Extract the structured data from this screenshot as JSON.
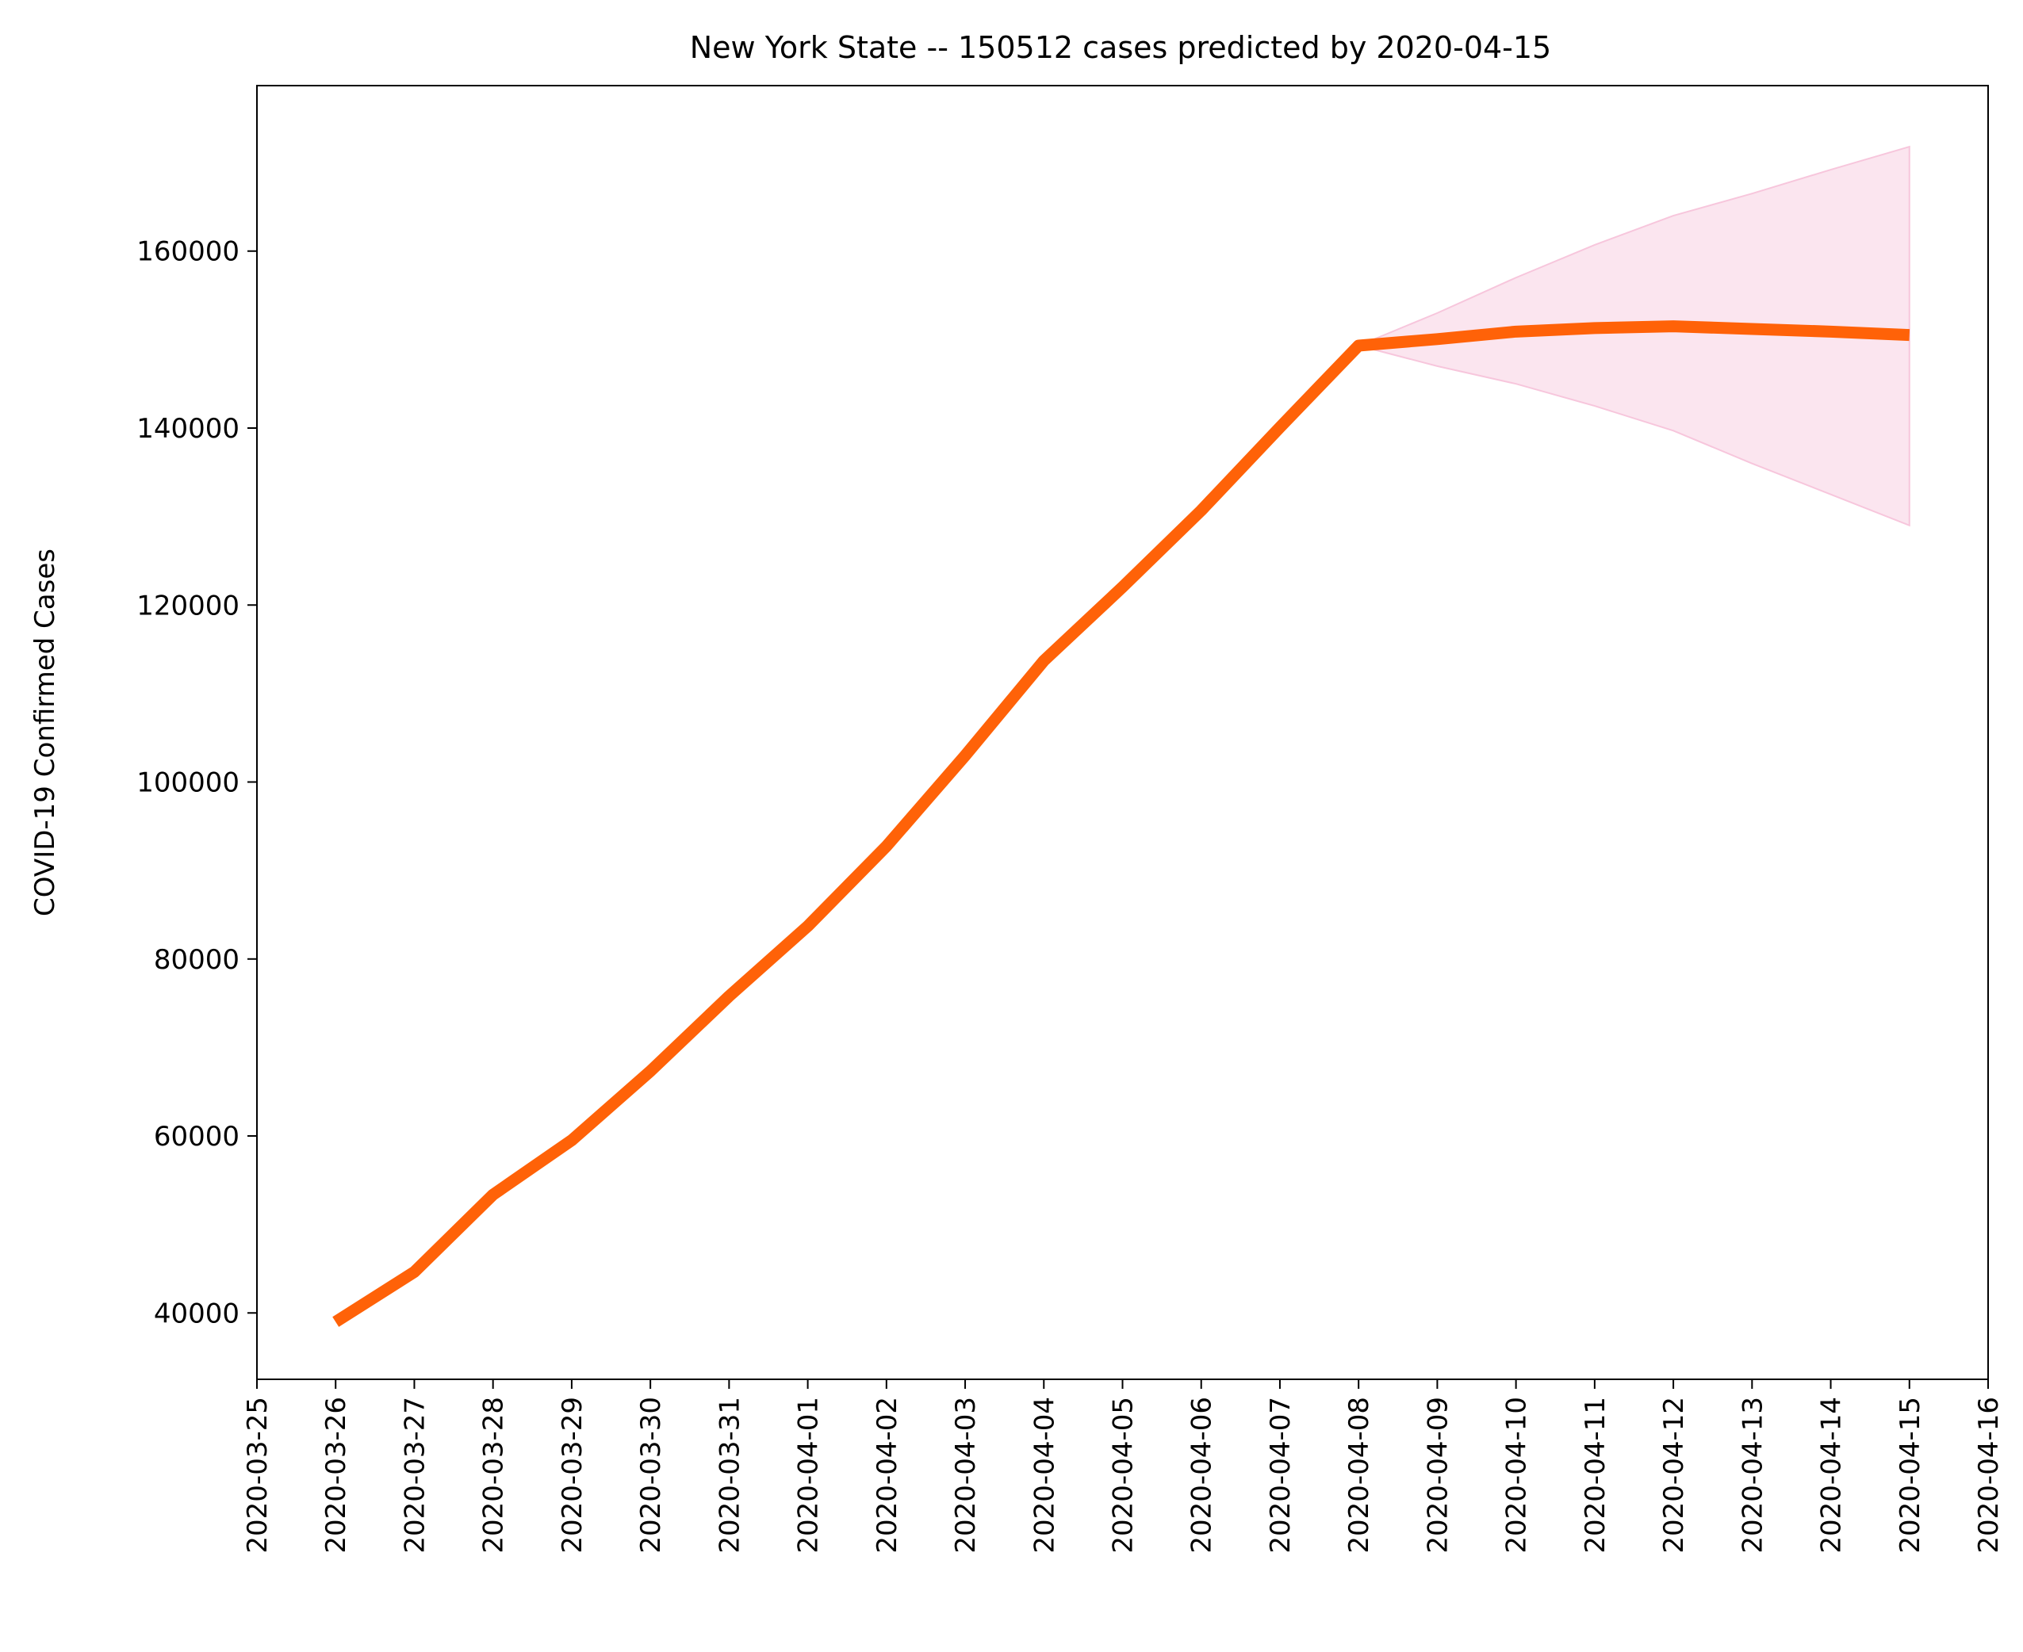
{
  "chart_data": {
    "type": "line",
    "title": "New York State  --  150512 cases predicted by 2020-04-15",
    "xlabel": "",
    "ylabel": "COVID-19 Confirmed Cases",
    "xlim": [
      "2020-03-25",
      "2020-04-16"
    ],
    "ylim": [
      32500,
      178700
    ],
    "grid": false,
    "legend": "none",
    "x_ticks": [
      "2020-03-25",
      "2020-03-26",
      "2020-03-27",
      "2020-03-28",
      "2020-03-29",
      "2020-03-30",
      "2020-03-31",
      "2020-04-01",
      "2020-04-02",
      "2020-04-03",
      "2020-04-04",
      "2020-04-05",
      "2020-04-06",
      "2020-04-07",
      "2020-04-08",
      "2020-04-09",
      "2020-04-10",
      "2020-04-11",
      "2020-04-12",
      "2020-04-13",
      "2020-04-14",
      "2020-04-15",
      "2020-04-16"
    ],
    "y_ticks": [
      40000,
      60000,
      80000,
      100000,
      120000,
      140000,
      160000
    ],
    "series": [
      {
        "color": "#ff6208",
        "x": [
          "2020-03-26",
          "2020-03-27",
          "2020-03-28",
          "2020-03-29",
          "2020-03-30",
          "2020-03-31",
          "2020-04-01",
          "2020-04-02",
          "2020-04-03",
          "2020-04-04",
          "2020-04-05",
          "2020-04-06",
          "2020-04-07",
          "2020-04-08",
          "2020-04-09",
          "2020-04-10",
          "2020-04-11",
          "2020-04-12",
          "2020-04-13",
          "2020-04-14",
          "2020-04-15"
        ],
        "values": [
          38987,
          44635,
          53363,
          59513,
          67325,
          75795,
          83712,
          92743,
          102987,
          113704,
          122031,
          130689,
          140081,
          149316,
          150050,
          150900,
          151300,
          151500,
          151200,
          150900,
          150512
        ]
      }
    ],
    "band": {
      "color": "#f7c6dc",
      "x": [
        "2020-04-08",
        "2020-04-09",
        "2020-04-10",
        "2020-04-11",
        "2020-04-12",
        "2020-04-13",
        "2020-04-14",
        "2020-04-15"
      ],
      "lower": [
        149316,
        147000,
        145000,
        142500,
        139700,
        136000,
        132500,
        129000
      ],
      "upper": [
        149316,
        153000,
        157000,
        160700,
        164000,
        166500,
        169200,
        171800
      ]
    }
  }
}
